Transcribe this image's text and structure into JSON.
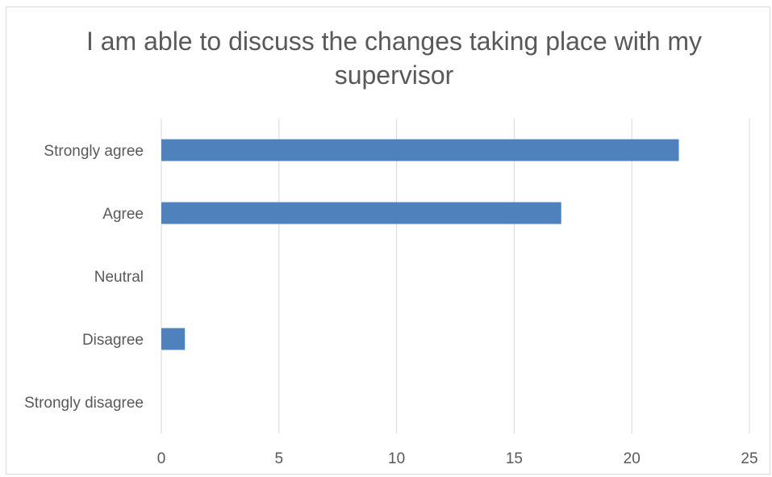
{
  "chart_data": {
    "type": "bar",
    "orientation": "horizontal",
    "title": "I am able to discuss the changes taking place with my supervisor",
    "categories": [
      "Strongly agree",
      "Agree",
      "Neutral",
      "Disagree",
      "Strongly disagree"
    ],
    "values": [
      22,
      17,
      0,
      1,
      0
    ],
    "xlim": [
      0,
      25
    ],
    "xticks": [
      "0",
      "5",
      "10",
      "15",
      "20",
      "25"
    ],
    "grid": true,
    "legend": "none",
    "bar_color": "#4f81bd",
    "grid_color": "#d9d9d9",
    "text_color": "#595959"
  }
}
